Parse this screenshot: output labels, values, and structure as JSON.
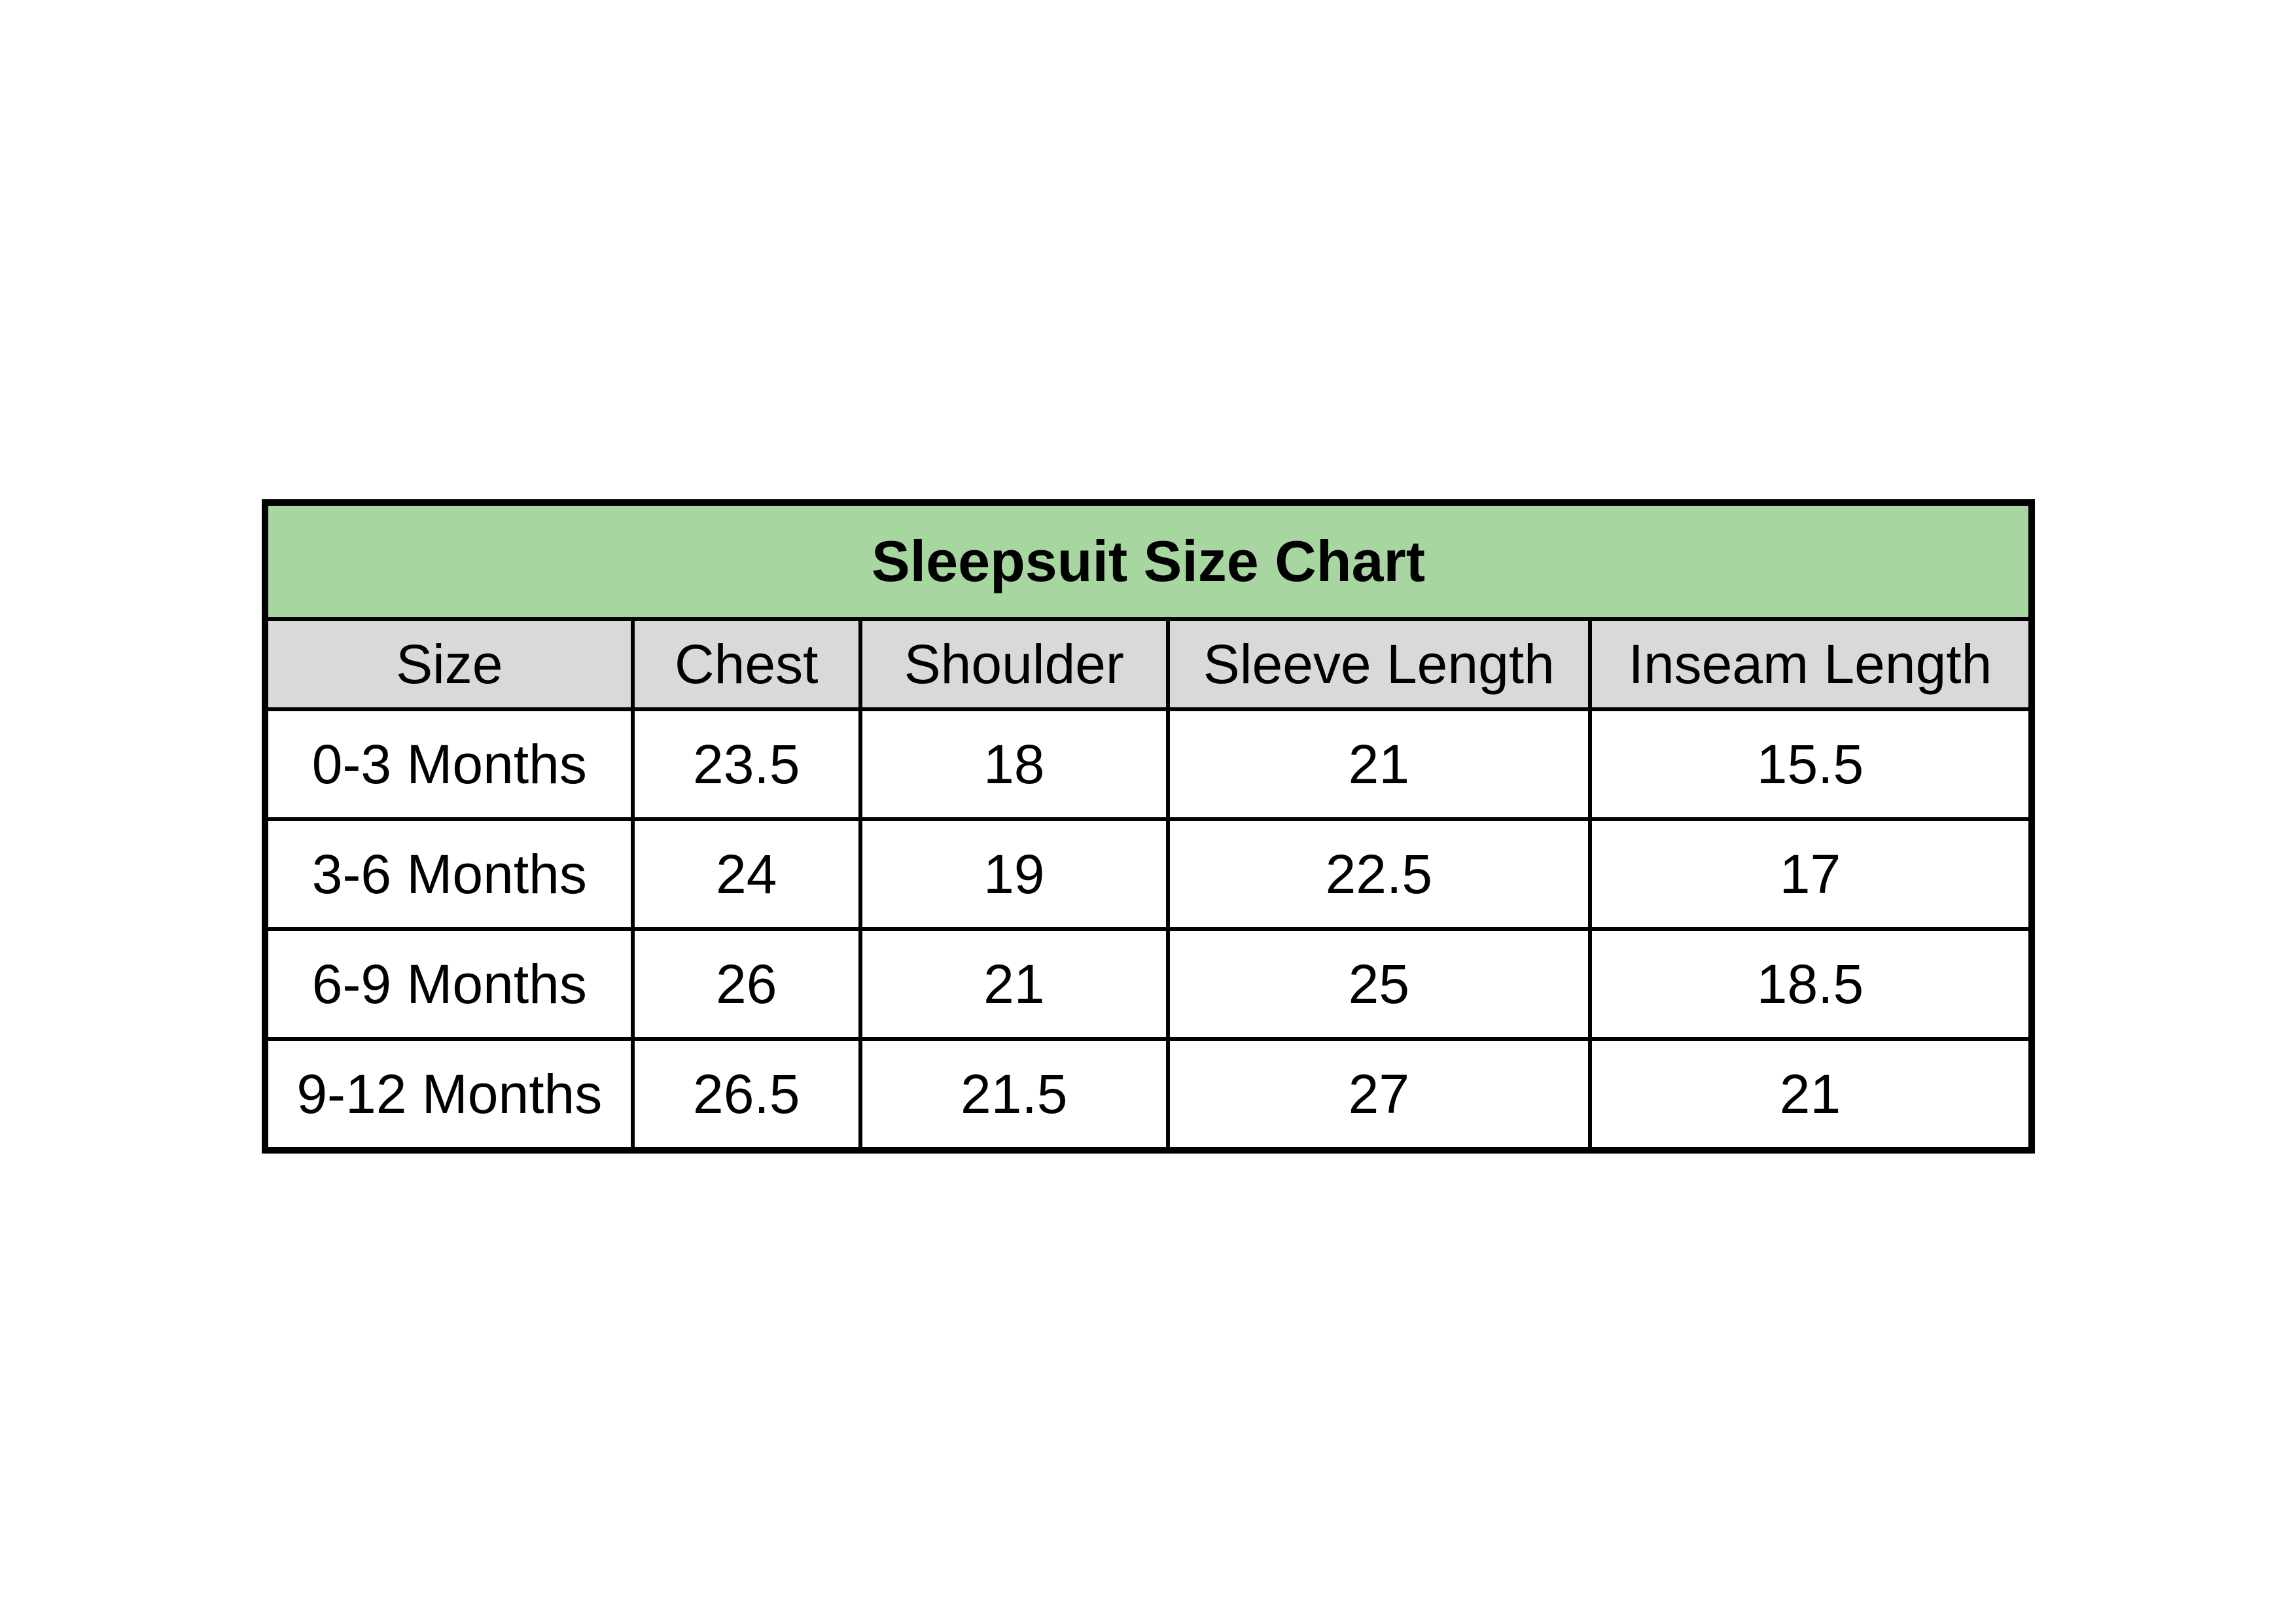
{
  "title": "Sleepsuit Size Chart",
  "colors": {
    "title_bg": "#a8d6a0",
    "header_bg": "#d9d9d9",
    "row_bg": "#ffffff",
    "border": "#000000",
    "text": "#000000",
    "page_bg": "#ffffff"
  },
  "table": {
    "columns": [
      "Size",
      "Chest",
      "Shoulder",
      "Sleeve Length",
      "Inseam Length"
    ],
    "rows": [
      [
        "0-3 Months",
        "23.5",
        "18",
        "21",
        "15.5"
      ],
      [
        "3-6 Months",
        "24",
        "19",
        "22.5",
        "17"
      ],
      [
        "6-9 Months",
        "26",
        "21",
        "25",
        "18.5"
      ],
      [
        "9-12 Months",
        "26.5",
        "21.5",
        "27",
        "21"
      ]
    ]
  },
  "chart_data": {
    "type": "table",
    "title": "Sleepsuit Size Chart",
    "columns": [
      "Size",
      "Chest",
      "Shoulder",
      "Sleeve Length",
      "Inseam Length"
    ],
    "rows": [
      [
        "0-3 Months",
        23.5,
        18,
        21,
        15.5
      ],
      [
        "3-6 Months",
        24,
        19,
        22.5,
        17
      ],
      [
        "6-9 Months",
        26,
        21,
        25,
        18.5
      ],
      [
        "9-12 Months",
        26.5,
        21.5,
        27,
        21
      ]
    ]
  }
}
